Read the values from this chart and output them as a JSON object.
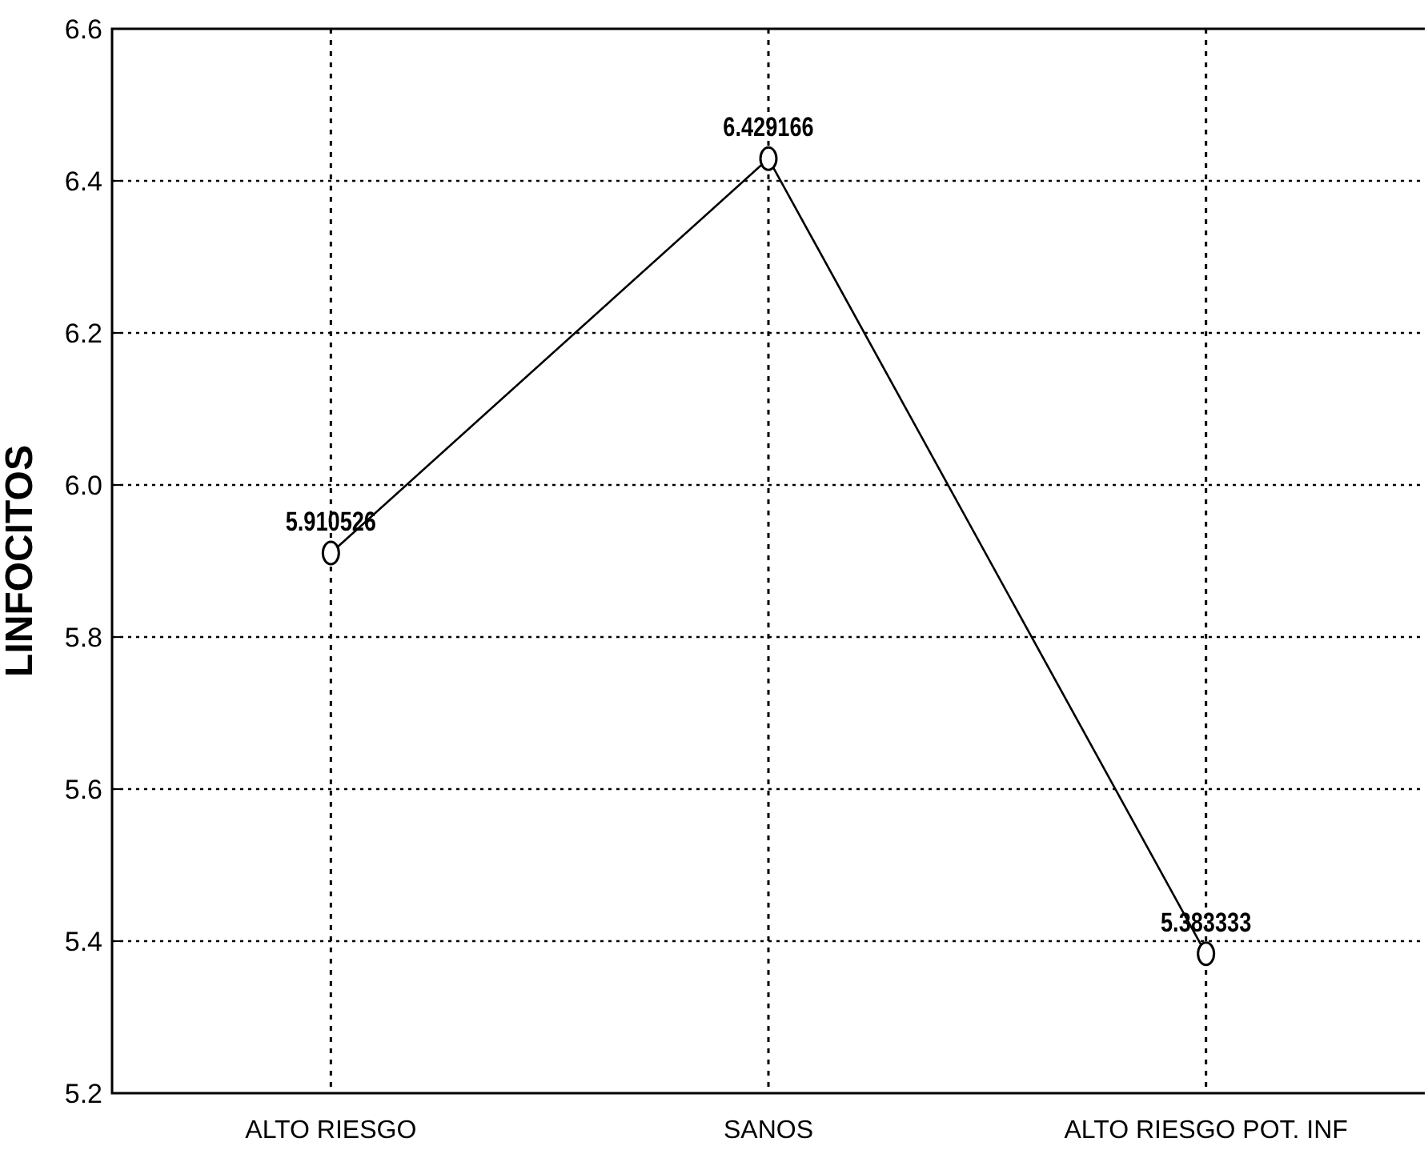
{
  "chart_data": {
    "type": "line",
    "ylabel": "LINFOCITOS",
    "categories": [
      "ALTO RIESGO",
      "SANOS",
      "ALTO RIESGO POT. INF"
    ],
    "series": [
      {
        "color": "#000000",
        "values": [
          5.910526,
          6.429166,
          5.383333
        ]
      }
    ],
    "ylim": [
      5.2,
      6.6
    ],
    "yticks": [
      {
        "value": 5.2,
        "label": "5.2"
      },
      5.4,
      5.6,
      5.8,
      {
        "value": 6.0,
        "label": "6.0"
      },
      6.2,
      6.4,
      6.6
    ],
    "grid": true,
    "marker": "circle",
    "line_style": "solid",
    "data_labels": true
  }
}
